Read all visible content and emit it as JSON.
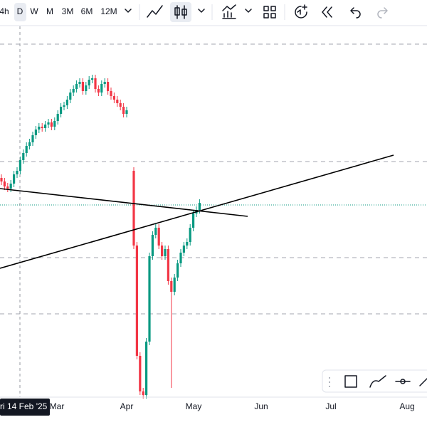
{
  "toolbar": {
    "intervals": [
      "4h",
      "D",
      "W",
      "M",
      "3M",
      "6M",
      "12M"
    ]
  },
  "time_axis": {
    "crosshair_label": "ri 14 Feb '25",
    "labels": [
      "Mar",
      "Apr",
      "May",
      "Jun",
      "Jul",
      "Aug"
    ]
  }
}
